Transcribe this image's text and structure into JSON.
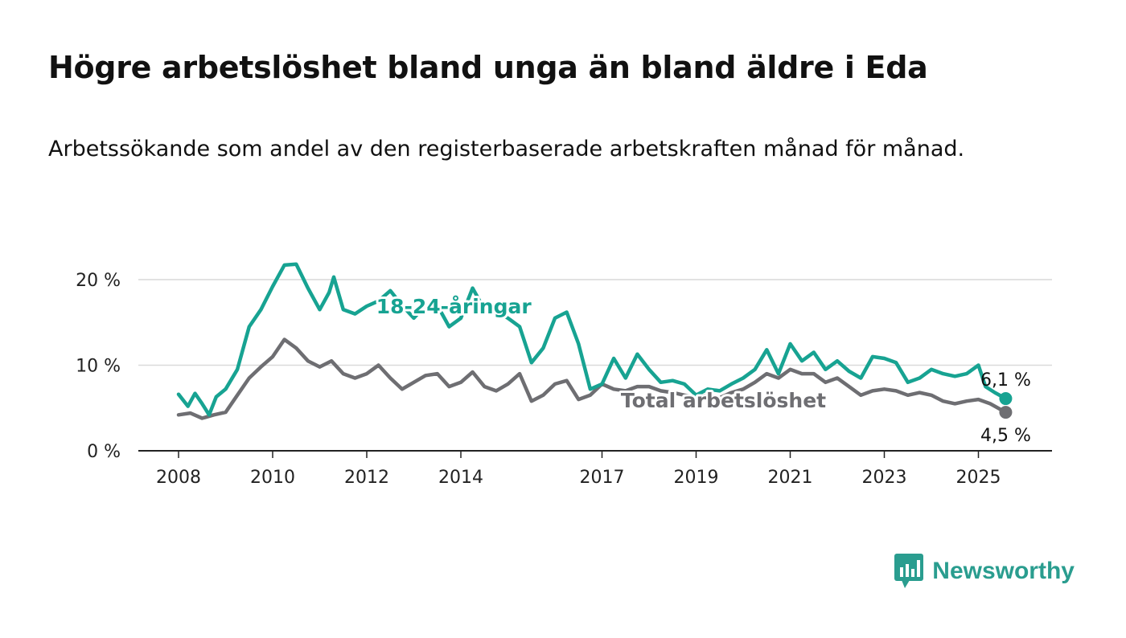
{
  "title": "Högre arbetslöshet bland unga än bland äldre i Eda",
  "subtitle": "Arbetssökande som andel av den registerbaserade arbetskraften månad för månad.",
  "brand": "Newsworthy",
  "colors": {
    "youth": "#17a392",
    "total": "#6e6e72",
    "grid": "#d9d9d9",
    "axis": "#222222"
  },
  "chart_data": {
    "type": "line",
    "x_ticks": [
      "2008",
      "2010",
      "2012",
      "2014",
      "2017",
      "2019",
      "2021",
      "2023",
      "2025"
    ],
    "y_ticks": [
      "0 %",
      "10 %",
      "20 %"
    ],
    "ylim": [
      0,
      20
    ],
    "grid": true,
    "series": [
      {
        "name": "18-24-åringar",
        "end_label": "6,1 %",
        "points": [
          [
            2008.0,
            6.6
          ],
          [
            2008.2,
            5.2
          ],
          [
            2008.35,
            6.7
          ],
          [
            2008.5,
            5.5
          ],
          [
            2008.65,
            4.2
          ],
          [
            2008.8,
            6.3
          ],
          [
            2009.0,
            7.2
          ],
          [
            2009.25,
            9.5
          ],
          [
            2009.5,
            14.5
          ],
          [
            2009.75,
            16.5
          ],
          [
            2010.0,
            19.2
          ],
          [
            2010.25,
            21.7
          ],
          [
            2010.5,
            21.8
          ],
          [
            2010.75,
            19.0
          ],
          [
            2011.0,
            16.5
          ],
          [
            2011.2,
            18.5
          ],
          [
            2011.3,
            20.3
          ],
          [
            2011.5,
            16.5
          ],
          [
            2011.75,
            16.0
          ],
          [
            2012.0,
            16.9
          ],
          [
            2012.25,
            17.5
          ],
          [
            2012.5,
            18.7
          ],
          [
            2012.75,
            17.0
          ],
          [
            2013.0,
            15.5
          ],
          [
            2013.25,
            17.0
          ],
          [
            2013.5,
            17.0
          ],
          [
            2013.75,
            14.5
          ],
          [
            2014.0,
            15.5
          ],
          [
            2014.25,
            19.0
          ],
          [
            2014.5,
            16.5
          ],
          [
            2014.75,
            16.3
          ],
          [
            2015.0,
            15.5
          ],
          [
            2015.25,
            14.5
          ],
          [
            2015.5,
            10.3
          ],
          [
            2015.75,
            12.0
          ],
          [
            2016.0,
            15.5
          ],
          [
            2016.25,
            16.2
          ],
          [
            2016.5,
            12.5
          ],
          [
            2016.75,
            7.2
          ],
          [
            2017.0,
            7.8
          ],
          [
            2017.25,
            10.8
          ],
          [
            2017.5,
            8.5
          ],
          [
            2017.75,
            11.3
          ],
          [
            2018.0,
            9.5
          ],
          [
            2018.25,
            8.0
          ],
          [
            2018.5,
            8.2
          ],
          [
            2018.75,
            7.8
          ],
          [
            2019.0,
            6.5
          ],
          [
            2019.25,
            7.2
          ],
          [
            2019.5,
            7.0
          ],
          [
            2019.75,
            7.8
          ],
          [
            2020.0,
            8.5
          ],
          [
            2020.25,
            9.5
          ],
          [
            2020.5,
            11.8
          ],
          [
            2020.75,
            9.0
          ],
          [
            2021.0,
            12.5
          ],
          [
            2021.25,
            10.5
          ],
          [
            2021.5,
            11.5
          ],
          [
            2021.75,
            9.5
          ],
          [
            2022.0,
            10.5
          ],
          [
            2022.25,
            9.3
          ],
          [
            2022.5,
            8.5
          ],
          [
            2022.75,
            11.0
          ],
          [
            2023.0,
            10.8
          ],
          [
            2023.25,
            10.3
          ],
          [
            2023.5,
            8.0
          ],
          [
            2023.75,
            8.5
          ],
          [
            2024.0,
            9.5
          ],
          [
            2024.25,
            9.0
          ],
          [
            2024.5,
            8.7
          ],
          [
            2024.75,
            9.0
          ],
          [
            2025.0,
            10.0
          ],
          [
            2025.15,
            7.5
          ],
          [
            2025.35,
            6.8
          ],
          [
            2025.58,
            6.1
          ]
        ]
      },
      {
        "name": "Total arbetslöshet",
        "end_label": "4,5 %",
        "points": [
          [
            2008.0,
            4.2
          ],
          [
            2008.25,
            4.4
          ],
          [
            2008.5,
            3.8
          ],
          [
            2008.75,
            4.2
          ],
          [
            2009.0,
            4.5
          ],
          [
            2009.25,
            6.5
          ],
          [
            2009.5,
            8.5
          ],
          [
            2009.75,
            9.8
          ],
          [
            2010.0,
            11.0
          ],
          [
            2010.25,
            13.0
          ],
          [
            2010.5,
            12.0
          ],
          [
            2010.75,
            10.5
          ],
          [
            2011.0,
            9.8
          ],
          [
            2011.25,
            10.5
          ],
          [
            2011.5,
            9.0
          ],
          [
            2011.75,
            8.5
          ],
          [
            2012.0,
            9.0
          ],
          [
            2012.25,
            10.0
          ],
          [
            2012.5,
            8.5
          ],
          [
            2012.75,
            7.2
          ],
          [
            2013.0,
            8.0
          ],
          [
            2013.25,
            8.8
          ],
          [
            2013.5,
            9.0
          ],
          [
            2013.75,
            7.5
          ],
          [
            2014.0,
            8.0
          ],
          [
            2014.25,
            9.2
          ],
          [
            2014.5,
            7.5
          ],
          [
            2014.75,
            7.0
          ],
          [
            2015.0,
            7.8
          ],
          [
            2015.25,
            9.0
          ],
          [
            2015.5,
            5.8
          ],
          [
            2015.75,
            6.5
          ],
          [
            2016.0,
            7.8
          ],
          [
            2016.25,
            8.2
          ],
          [
            2016.5,
            6.0
          ],
          [
            2016.75,
            6.5
          ],
          [
            2017.0,
            7.8
          ],
          [
            2017.25,
            7.2
          ],
          [
            2017.5,
            7.0
          ],
          [
            2017.75,
            7.5
          ],
          [
            2018.0,
            7.5
          ],
          [
            2018.25,
            7.0
          ],
          [
            2018.5,
            6.8
          ],
          [
            2018.75,
            6.5
          ],
          [
            2019.0,
            6.3
          ],
          [
            2019.25,
            6.5
          ],
          [
            2019.5,
            6.2
          ],
          [
            2019.75,
            6.8
          ],
          [
            2020.0,
            7.2
          ],
          [
            2020.25,
            8.0
          ],
          [
            2020.5,
            9.0
          ],
          [
            2020.75,
            8.5
          ],
          [
            2021.0,
            9.5
          ],
          [
            2021.25,
            9.0
          ],
          [
            2021.5,
            9.0
          ],
          [
            2021.75,
            8.0
          ],
          [
            2022.0,
            8.5
          ],
          [
            2022.25,
            7.5
          ],
          [
            2022.5,
            6.5
          ],
          [
            2022.75,
            7.0
          ],
          [
            2023.0,
            7.2
          ],
          [
            2023.25,
            7.0
          ],
          [
            2023.5,
            6.5
          ],
          [
            2023.75,
            6.8
          ],
          [
            2024.0,
            6.5
          ],
          [
            2024.25,
            5.8
          ],
          [
            2024.5,
            5.5
          ],
          [
            2024.75,
            5.8
          ],
          [
            2025.0,
            6.0
          ],
          [
            2025.25,
            5.5
          ],
          [
            2025.58,
            4.5
          ]
        ]
      }
    ]
  }
}
